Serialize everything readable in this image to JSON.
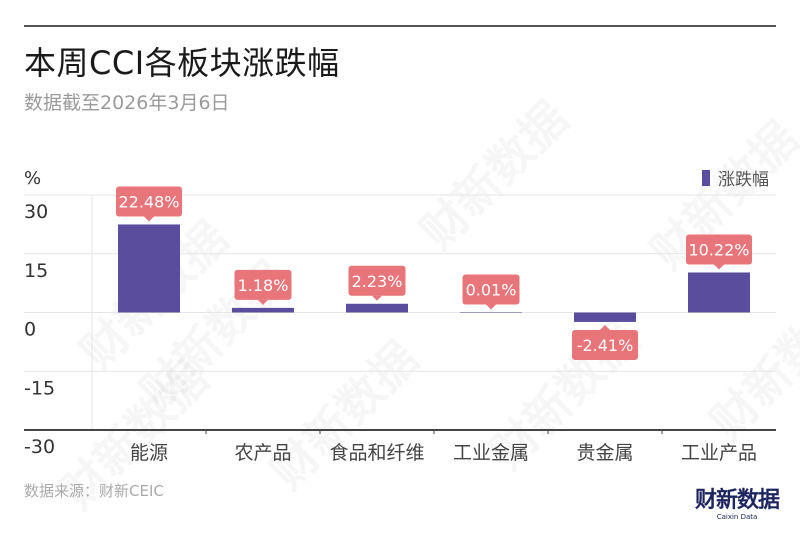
{
  "header": {
    "title": "本周CCI各板块涨跌幅",
    "subtitle": "数据截至2026年3月6日"
  },
  "footer": {
    "source": "数据来源：财新CEIC",
    "logo_cn": "财新数据",
    "logo_en": "Caixin Data"
  },
  "watermark_text": "财新数据",
  "colors": {
    "bar": "#5a4d9e",
    "label_bg": "#e8757a",
    "label_text": "#ffffff",
    "grid": "#e6e6e6",
    "axis": "#444444",
    "tick_text": "#333333",
    "category_text": "#444444"
  },
  "chart_data": {
    "type": "bar",
    "title": "本周CCI各板块涨跌幅",
    "subtitle": "数据截至2026年3月6日",
    "xlabel": "",
    "ylabel": "%",
    "ylim": [
      -30,
      30
    ],
    "yticks": [
      30,
      15,
      0,
      -15,
      -30
    ],
    "grid": true,
    "legend_position": "top-right",
    "categories": [
      "能源",
      "农产品",
      "食品和纤维",
      "工业金属",
      "贵金属",
      "工业产品"
    ],
    "series": [
      {
        "name": "涨跌幅",
        "values": [
          22.48,
          1.18,
          2.23,
          0.01,
          -2.41,
          10.22
        ],
        "labels": [
          "22.48%",
          "1.18%",
          "2.23%",
          "0.01%",
          "-2.41%",
          "10.22%"
        ]
      }
    ]
  }
}
